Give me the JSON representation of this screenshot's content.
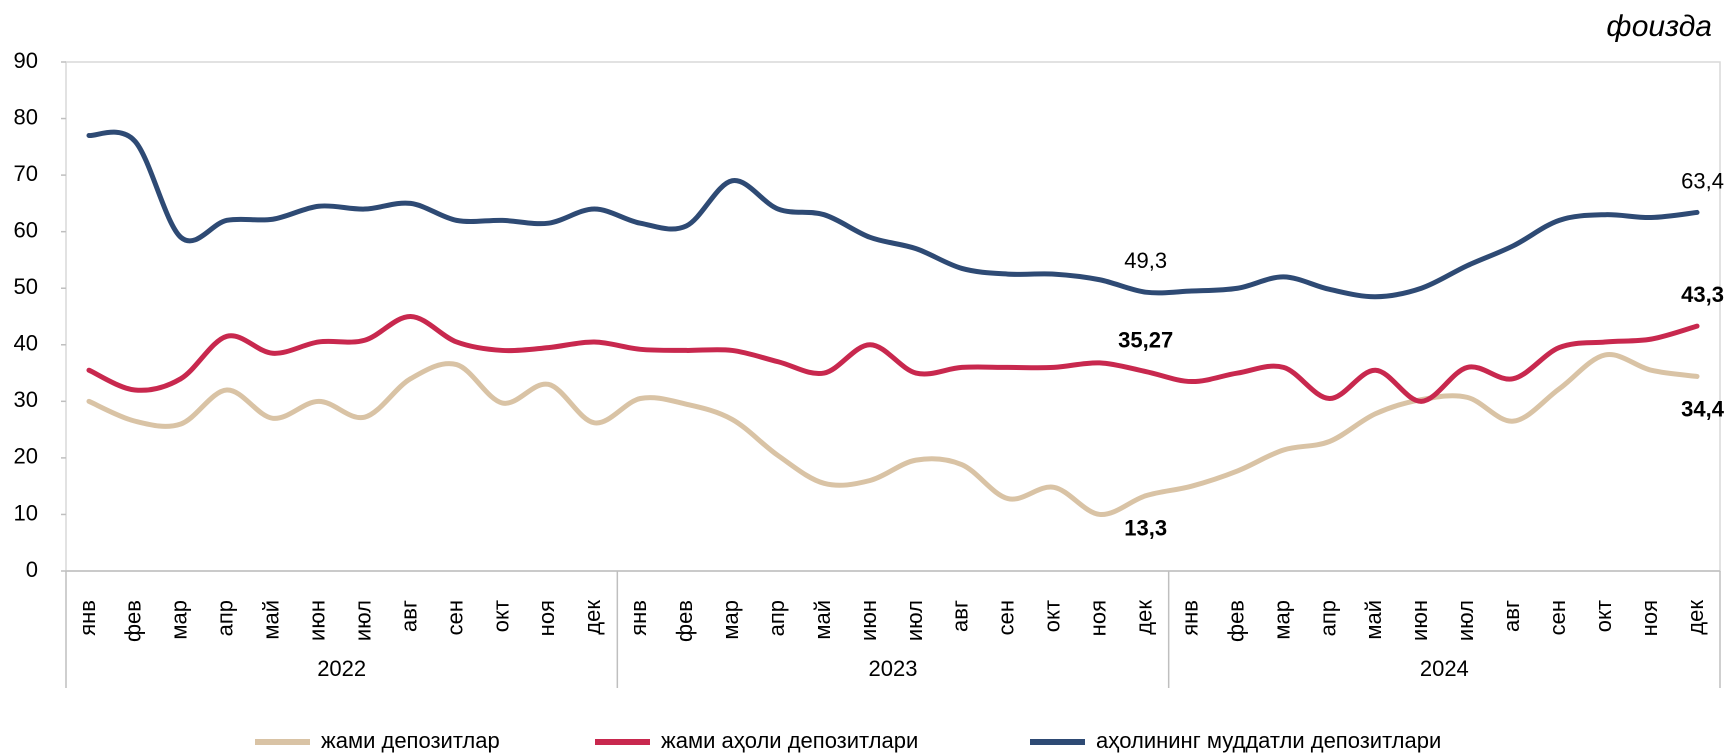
{
  "chart_data": {
    "type": "line",
    "unit_label": "фоизда",
    "categories": [
      "янв",
      "фев",
      "мар",
      "апр",
      "май",
      "июн",
      "июл",
      "авг",
      "сен",
      "окт",
      "ноя",
      "дек",
      "янв",
      "фев",
      "мар",
      "апр",
      "май",
      "июн",
      "июл",
      "авг",
      "сен",
      "окт",
      "ноя",
      "дек",
      "янв",
      "фев",
      "мар",
      "апр",
      "май",
      "июн",
      "июл",
      "авг",
      "сен",
      "окт",
      "ноя",
      "дек"
    ],
    "groups": [
      "2022",
      "2023",
      "2024"
    ],
    "series": [
      {
        "name": "жами депозитлар",
        "color": "#d9c3a5",
        "values": [
          30,
          26.5,
          26,
          32,
          27,
          30,
          27.2,
          34,
          36.5,
          29.7,
          33,
          26.2,
          30.5,
          29.5,
          26.8,
          20.4,
          15.5,
          16,
          19.6,
          18.8,
          12.8,
          14.8,
          10,
          13.3,
          15,
          17.7,
          21.4,
          22.9,
          27.8,
          30.3,
          30.7,
          26.5,
          32.2,
          38.2,
          35.5,
          34.4
        ],
        "value_labels": [
          null,
          null,
          null,
          null,
          null,
          null,
          null,
          null,
          null,
          null,
          null,
          null,
          null,
          null,
          null,
          null,
          null,
          null,
          null,
          null,
          null,
          null,
          null,
          "13,3",
          null,
          null,
          null,
          null,
          null,
          null,
          null,
          null,
          null,
          null,
          null,
          "34,4"
        ]
      },
      {
        "name": "жами аҳоли депозитлари",
        "color": "#c8284e",
        "values": [
          35.5,
          32,
          34,
          41.5,
          38.5,
          40.5,
          40.8,
          45,
          40.5,
          39,
          39.5,
          40.5,
          39.2,
          39,
          39,
          37,
          35,
          40,
          35,
          36,
          36,
          36,
          36.8,
          35.27,
          33.5,
          35,
          36,
          30.5,
          35.5,
          30,
          36,
          34,
          39.5,
          40.5,
          41,
          43.3
        ],
        "value_labels": [
          null,
          null,
          null,
          null,
          null,
          null,
          null,
          null,
          null,
          null,
          null,
          null,
          null,
          null,
          null,
          null,
          null,
          null,
          null,
          null,
          null,
          null,
          null,
          "35,27",
          null,
          null,
          null,
          null,
          null,
          null,
          null,
          null,
          null,
          null,
          null,
          "43,3"
        ]
      },
      {
        "name": "аҳолининг муддатли депозитлари",
        "color": "#2e4a74",
        "values": [
          77,
          76,
          59,
          62,
          62.2,
          64.5,
          64,
          65,
          62,
          62,
          61.5,
          64,
          61.5,
          61,
          69,
          64,
          63,
          59,
          57,
          53.5,
          52.5,
          52.5,
          51.5,
          49.3,
          49.5,
          50,
          52,
          49.8,
          48.5,
          50,
          54,
          57.5,
          62,
          63,
          62.5,
          63.4
        ],
        "value_labels": [
          null,
          null,
          null,
          null,
          null,
          null,
          null,
          null,
          null,
          null,
          null,
          null,
          null,
          null,
          null,
          null,
          null,
          null,
          null,
          null,
          null,
          null,
          null,
          "49,3",
          null,
          null,
          null,
          null,
          null,
          null,
          null,
          null,
          null,
          null,
          null,
          "63,4"
        ]
      }
    ],
    "ylim": [
      0,
      90
    ],
    "yticks": [
      0,
      10,
      20,
      30,
      40,
      50,
      60,
      70,
      80,
      90
    ],
    "grid": false
  }
}
